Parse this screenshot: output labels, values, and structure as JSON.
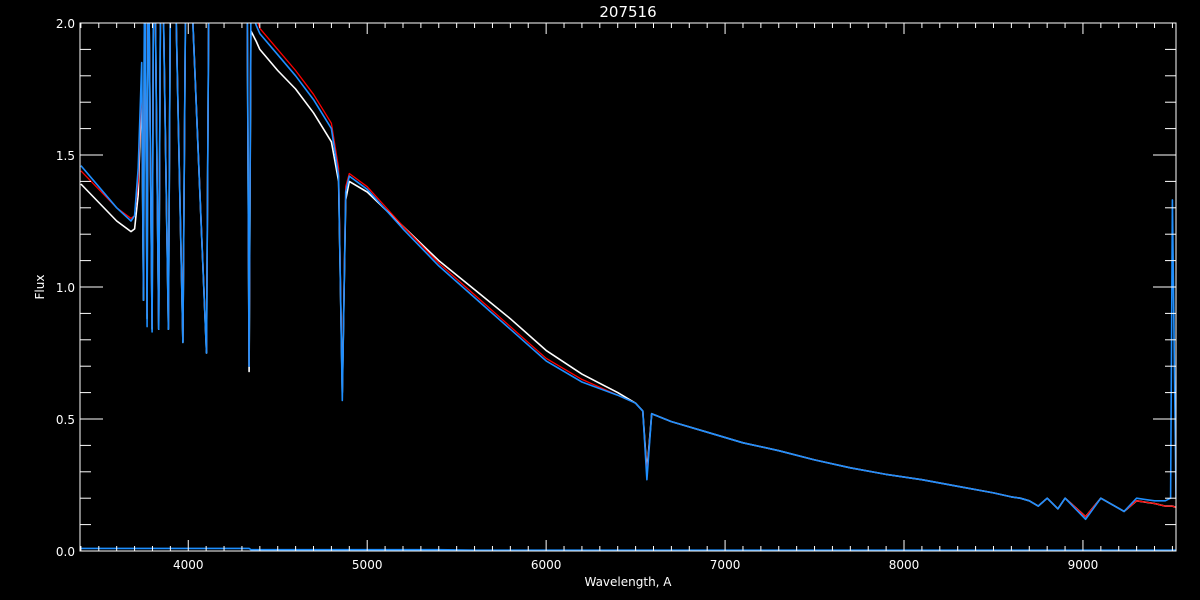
{
  "chart_data": {
    "type": "line",
    "title": "207516",
    "xlabel": "Wavelength, A",
    "ylabel": "Flux",
    "xlim": [
      3395,
      9520
    ],
    "ylim": [
      0,
      2.0
    ],
    "xticks": [
      4000,
      5000,
      6000,
      7000,
      8000,
      9000
    ],
    "xtick_labels": [
      "4000",
      "5000",
      "6000",
      "7000",
      "8000",
      "9000"
    ],
    "yticks": [
      0,
      0.5,
      1.0,
      1.5,
      2.0
    ],
    "ytick_labels": [
      "0.0",
      "0.5",
      "1.0",
      "1.5",
      "2.0"
    ],
    "grid": false,
    "background": "#000000",
    "x": [
      3400,
      3500,
      3600,
      3680,
      3700,
      3720,
      3740,
      3750,
      3755,
      3760,
      3770,
      3775,
      3780,
      3798,
      3805,
      3815,
      3835,
      3845,
      3860,
      3889,
      3900,
      3930,
      3970,
      3985,
      4020,
      4102,
      4115,
      4200,
      4300,
      4330,
      4340,
      4350,
      4380,
      4400,
      4500,
      4600,
      4700,
      4800,
      4840,
      4861,
      4880,
      4900,
      5000,
      5200,
      5400,
      5600,
      5800,
      6000,
      6200,
      6400,
      6500,
      6540,
      6563,
      6590,
      6700,
      6900,
      7100,
      7300,
      7500,
      7700,
      7900,
      8100,
      8300,
      8500,
      8600,
      8650,
      8700,
      8750,
      8800,
      8860,
      8900,
      9015,
      9100,
      9230,
      9300,
      9400,
      9460,
      9490,
      9500,
      9520
    ],
    "series": [
      {
        "color": "#ffffff",
        "values": [
          1.39,
          1.32,
          1.25,
          1.21,
          1.22,
          1.35,
          1.75,
          0.95,
          2.1,
          2.1,
          0.88,
          2.1,
          2.1,
          0.84,
          2.1,
          2.1,
          0.84,
          2.1,
          2.1,
          0.84,
          2.1,
          2.1,
          0.79,
          2.1,
          2.1,
          0.75,
          2.1,
          2.1,
          2.1,
          2.0,
          0.68,
          1.97,
          1.93,
          1.9,
          1.82,
          1.75,
          1.66,
          1.55,
          1.4,
          0.6,
          1.33,
          1.4,
          1.36,
          1.23,
          1.1,
          0.99,
          0.88,
          0.76,
          0.67,
          0.6,
          0.56,
          0.53,
          0.3,
          0.52,
          0.49,
          0.45,
          0.41,
          0.38,
          0.345,
          0.315,
          0.29,
          0.27,
          0.245,
          0.22,
          0.205,
          0.2,
          0.19,
          0.17,
          0.2,
          0.16,
          0.2,
          0.13,
          0.2,
          0.15,
          0.19,
          0.18,
          0.17,
          0.17,
          0.17,
          0.165
        ]
      },
      {
        "color": "#ff0000",
        "values": [
          1.44,
          1.37,
          1.3,
          1.26,
          1.27,
          1.4,
          1.8,
          1.0,
          2.1,
          2.1,
          0.9,
          2.1,
          2.1,
          0.85,
          2.1,
          2.1,
          0.85,
          2.1,
          2.1,
          0.85,
          2.1,
          2.1,
          0.8,
          2.1,
          2.1,
          0.76,
          2.1,
          2.1,
          2.1,
          2.05,
          0.7,
          2.05,
          2.02,
          1.98,
          1.9,
          1.82,
          1.73,
          1.62,
          1.45,
          0.6,
          1.38,
          1.43,
          1.38,
          1.23,
          1.09,
          0.97,
          0.85,
          0.73,
          0.65,
          0.59,
          0.56,
          0.53,
          0.29,
          0.52,
          0.49,
          0.45,
          0.41,
          0.38,
          0.345,
          0.315,
          0.29,
          0.27,
          0.245,
          0.22,
          0.205,
          0.2,
          0.19,
          0.17,
          0.2,
          0.16,
          0.2,
          0.13,
          0.2,
          0.15,
          0.19,
          0.18,
          0.17,
          0.17,
          0.17,
          0.165
        ]
      },
      {
        "color": "#1e8fff",
        "values": [
          1.46,
          1.38,
          1.3,
          1.25,
          1.27,
          1.45,
          1.85,
          0.95,
          2.1,
          2.1,
          0.85,
          2.1,
          2.1,
          0.83,
          2.1,
          2.1,
          0.84,
          2.1,
          2.1,
          0.84,
          2.1,
          2.1,
          0.79,
          2.1,
          2.1,
          0.75,
          2.1,
          2.1,
          2.1,
          2.05,
          0.7,
          2.05,
          1.99,
          1.96,
          1.88,
          1.8,
          1.71,
          1.6,
          1.42,
          0.57,
          1.36,
          1.42,
          1.37,
          1.22,
          1.08,
          0.96,
          0.84,
          0.72,
          0.64,
          0.59,
          0.56,
          0.53,
          0.27,
          0.52,
          0.49,
          0.45,
          0.41,
          0.38,
          0.345,
          0.315,
          0.29,
          0.27,
          0.245,
          0.22,
          0.205,
          0.2,
          0.19,
          0.17,
          0.2,
          0.16,
          0.2,
          0.12,
          0.2,
          0.15,
          0.2,
          0.19,
          0.19,
          0.2,
          1.33,
          0.2
        ]
      },
      {
        "color": "#1e8fff",
        "values": [
          0.01,
          0.01,
          0.01,
          0.01,
          0.01,
          0.01,
          0.01,
          0.01,
          0.01,
          0.01,
          0.01,
          0.01,
          0.01,
          0.01,
          0.01,
          0.01,
          0.01,
          0.01,
          0.01,
          0.01,
          0.01,
          0.01,
          0.01,
          0.01,
          0.01,
          0.01,
          0.01,
          0.01,
          0.01,
          0.01,
          0.01,
          0.005,
          0.005,
          0.005,
          0.005,
          0.005,
          0.005,
          0.005,
          0.005,
          0.005,
          0.005,
          0.005,
          0.005,
          0.005,
          0.005,
          0.003,
          0.003,
          0.003,
          0.003,
          0.003,
          0.003,
          0.003,
          0.003,
          0.003,
          0.003,
          0.003,
          0.003,
          0.003,
          0.003,
          0.003,
          0.003,
          0.003,
          0.003,
          0.003,
          0.003,
          0.003,
          0.003,
          0.003,
          0.003,
          0.003,
          0.003,
          0.003,
          0.003,
          0.003,
          0.003,
          0.003,
          0.003,
          0.003,
          0.003,
          0.003
        ]
      }
    ]
  }
}
